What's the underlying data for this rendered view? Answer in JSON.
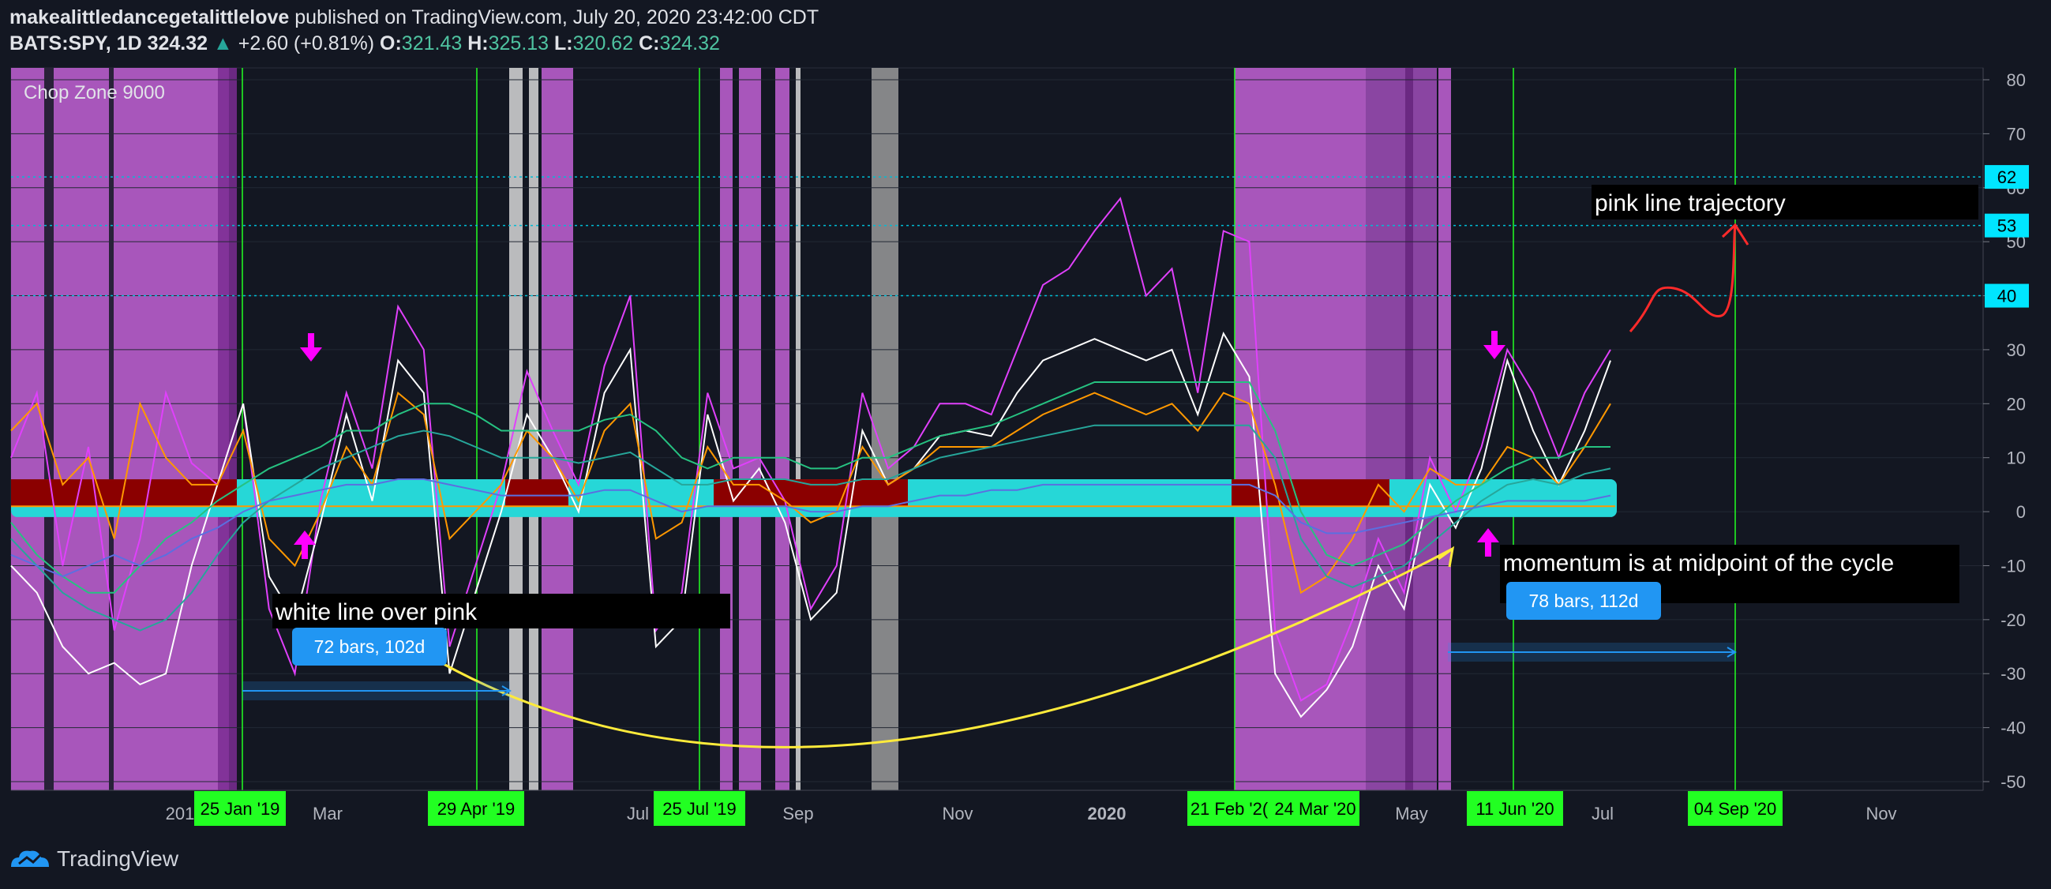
{
  "header": {
    "author": "makealittledancegetalittlelove",
    "published": "published on TradingView.com, July 20, 2020 23:42:00 CDT",
    "symbol": "BATS:SPY, 1D",
    "last": "324.32",
    "change": "+2.60 (+0.81%)",
    "o_label": "O:",
    "o": "321.43",
    "h_label": "H:",
    "h": "325.13",
    "l_label": "L:",
    "l": "320.62",
    "c_label": "C:",
    "c": "324.32"
  },
  "indicator_name": "Chop Zone 9000",
  "footer": {
    "brand": "TradingView"
  },
  "chart_data": {
    "type": "line",
    "ylim": [
      -50,
      80
    ],
    "y_ticks": [
      80,
      70,
      60,
      50,
      40,
      30,
      20,
      10,
      0,
      -10,
      -20,
      -30,
      -40,
      -50
    ],
    "x_tick_labels": [
      "201",
      "Mar",
      "Jul",
      "Sep",
      "Nov",
      "2020",
      "May",
      "Jul",
      "Nov"
    ],
    "highlighted_dates": [
      "25 Jan '19",
      "29 Apr '19",
      "25 Jul '19",
      "21 Feb '2(",
      "24 Mar '20",
      "11 Jun '20",
      "04 Sep '20"
    ],
    "price_level_labels": [
      62,
      53,
      40
    ],
    "annotations": [
      "pink line trajectory",
      "white line over pink",
      "momentum is at midpoint of the cycle",
      "72 bars, 102d",
      "78 bars, 112d"
    ],
    "series_colors": {
      "pink": "#e040fb",
      "white": "#ffffff",
      "orange": "#ff9800",
      "green": "#26c281",
      "teal": "#26a69a",
      "blue": "#5b6fe0"
    },
    "series": [
      {
        "values": [
          10,
          22,
          -10,
          12,
          -22,
          -5,
          22,
          9,
          5,
          20,
          -18,
          -30,
          2,
          22,
          8,
          38,
          30,
          -25,
          -10,
          5,
          26,
          15,
          5,
          27,
          40,
          -22,
          -15,
          22,
          8,
          10,
          2,
          -18,
          -10,
          22,
          8,
          12,
          20,
          20,
          18,
          30,
          42,
          45,
          52,
          58,
          40,
          45,
          22,
          52,
          50,
          -22,
          -35,
          -32,
          -20,
          -5,
          -15,
          10,
          0,
          12,
          30,
          22,
          10,
          22,
          30
        ]
      },
      {
        "values": [
          -10,
          -15,
          -25,
          -30,
          -28,
          -32,
          -30,
          -10,
          5,
          20,
          -12,
          -20,
          -2,
          18,
          2,
          28,
          22,
          -30,
          -15,
          0,
          18,
          10,
          0,
          22,
          30,
          -25,
          -20,
          18,
          2,
          8,
          -2,
          -20,
          -15,
          15,
          5,
          8,
          14,
          15,
          14,
          22,
          28,
          30,
          32,
          30,
          28,
          30,
          18,
          33,
          25,
          -30,
          -38,
          -33,
          -25,
          -10,
          -18,
          5,
          -3,
          8,
          28,
          15,
          5,
          15,
          28
        ]
      },
      {
        "values": [
          15,
          20,
          5,
          10,
          -5,
          20,
          10,
          5,
          5,
          15,
          -5,
          -10,
          0,
          12,
          5,
          22,
          18,
          -5,
          0,
          5,
          15,
          10,
          2,
          15,
          20,
          -5,
          -2,
          12,
          5,
          5,
          2,
          -2,
          0,
          12,
          5,
          8,
          12,
          12,
          12,
          15,
          18,
          20,
          22,
          20,
          18,
          20,
          15,
          22,
          20,
          5,
          -15,
          -12,
          -5,
          5,
          0,
          8,
          5,
          5,
          12,
          10,
          5,
          12,
          20
        ]
      },
      {
        "values": [
          -2,
          -8,
          -12,
          -15,
          -15,
          -10,
          -5,
          -2,
          2,
          5,
          8,
          10,
          12,
          15,
          15,
          18,
          20,
          20,
          18,
          15,
          15,
          15,
          15,
          17,
          18,
          15,
          10,
          8,
          10,
          10,
          10,
          8,
          8,
          10,
          10,
          12,
          14,
          15,
          16,
          18,
          20,
          22,
          24,
          24,
          24,
          24,
          24,
          24,
          24,
          15,
          0,
          -8,
          -10,
          -8,
          -6,
          -2,
          2,
          5,
          8,
          10,
          10,
          12,
          12
        ]
      },
      {
        "values": [
          -5,
          -10,
          -15,
          -18,
          -20,
          -22,
          -20,
          -15,
          -8,
          -2,
          2,
          5,
          8,
          10,
          12,
          14,
          15,
          14,
          12,
          10,
          10,
          10,
          9,
          10,
          11,
          8,
          5,
          5,
          6,
          6,
          6,
          5,
          5,
          6,
          6,
          8,
          10,
          11,
          12,
          13,
          14,
          15,
          16,
          16,
          16,
          16,
          16,
          16,
          16,
          10,
          -5,
          -12,
          -14,
          -12,
          -10,
          -6,
          -2,
          2,
          5,
          6,
          5,
          7,
          8
        ]
      },
      {
        "values": [
          -8,
          -10,
          -12,
          -10,
          -8,
          -10,
          -8,
          -5,
          -3,
          0,
          2,
          3,
          4,
          5,
          5,
          6,
          6,
          5,
          4,
          3,
          3,
          3,
          3,
          4,
          4,
          2,
          0,
          1,
          1,
          1,
          1,
          0,
          0,
          1,
          1,
          2,
          3,
          3,
          4,
          4,
          5,
          5,
          5,
          5,
          5,
          5,
          5,
          5,
          5,
          3,
          -2,
          -4,
          -4,
          -3,
          -2,
          -1,
          0,
          1,
          2,
          2,
          2,
          2,
          3
        ]
      }
    ]
  }
}
